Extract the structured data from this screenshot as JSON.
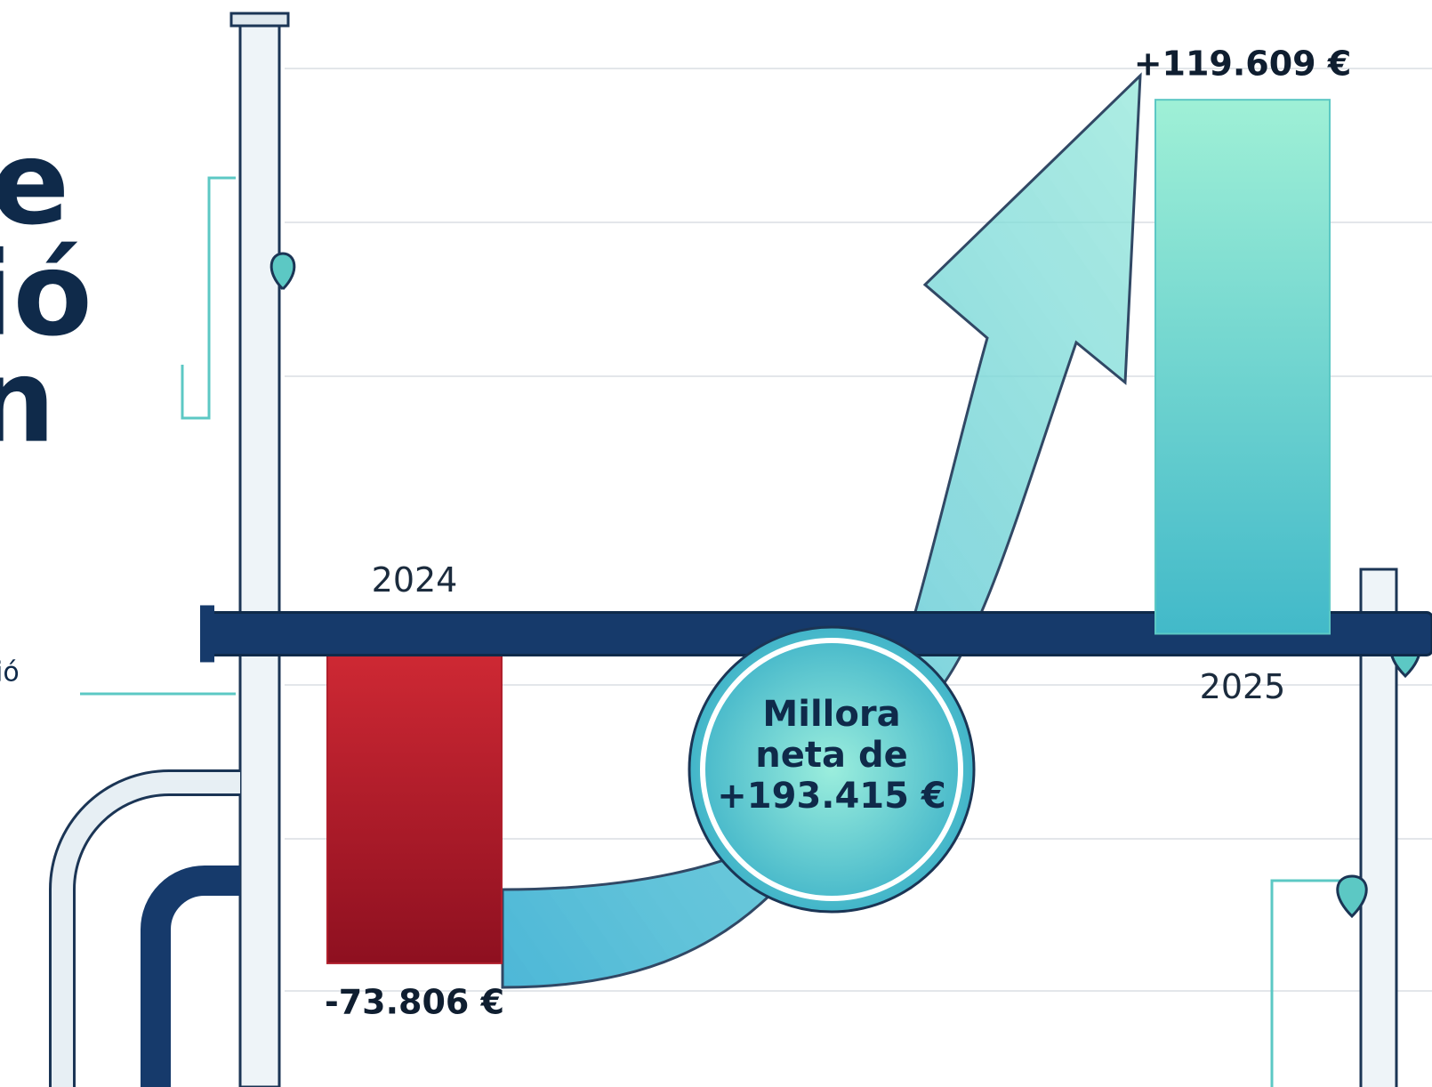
{
  "title_lines": [
    "e",
    "ió",
    "n"
  ],
  "side_note": "ió",
  "chart_data": {
    "type": "bar",
    "categories": [
      "2024",
      "2025"
    ],
    "values": [
      -73806,
      119609
    ],
    "value_labels": [
      "-73.806 €",
      "+119.609 €"
    ],
    "colors": [
      "#b01f2c",
      "#5cc8c4"
    ],
    "ylim": [
      -80000,
      130000
    ],
    "annotation": "Millora neta de +193.415 €"
  }
}
